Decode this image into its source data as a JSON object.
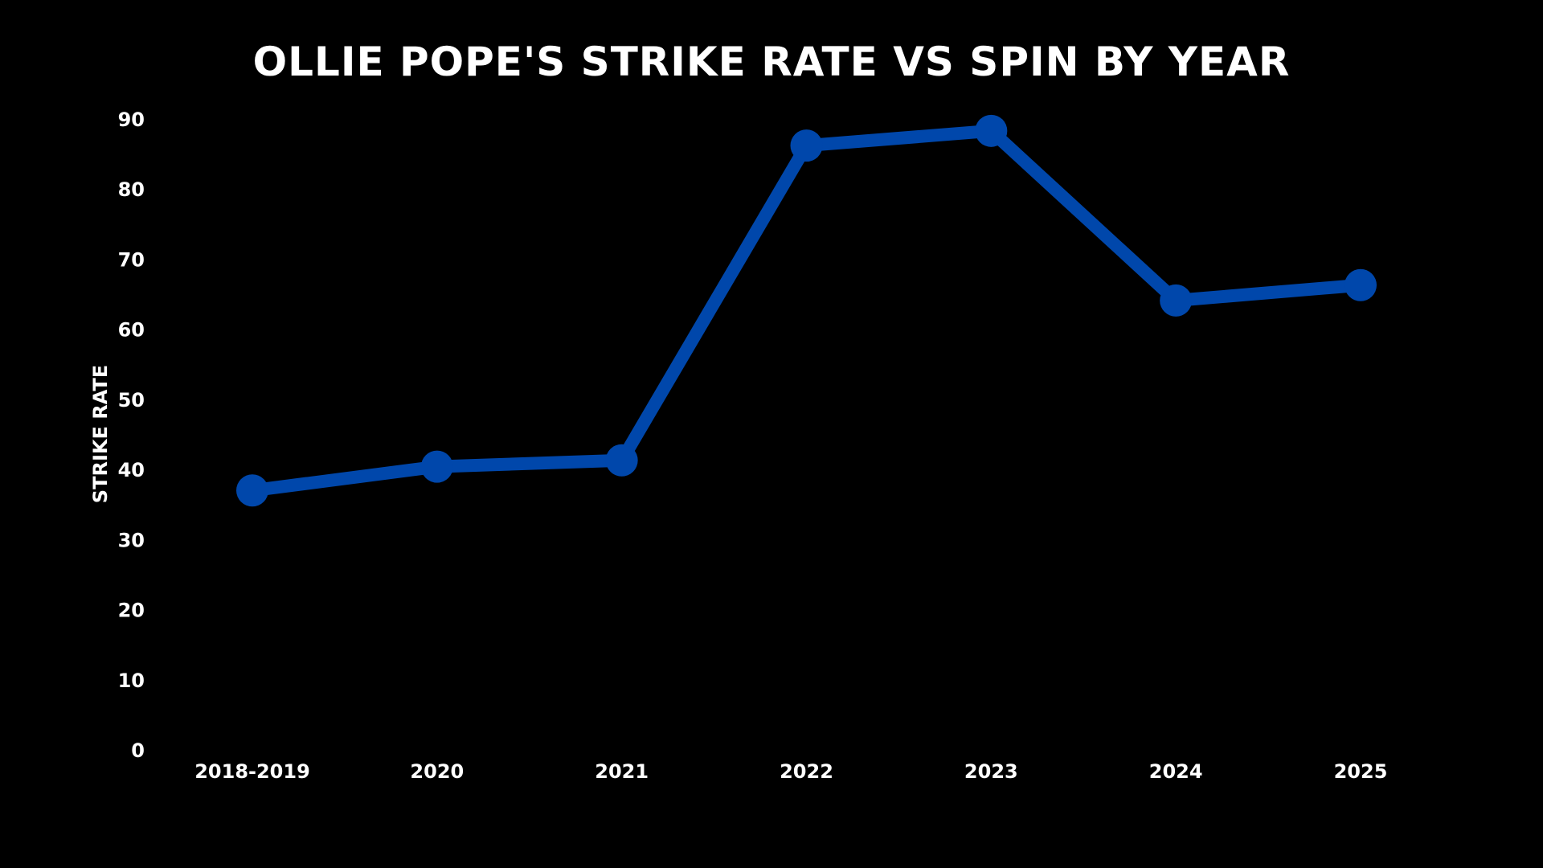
{
  "chart_data": {
    "type": "line",
    "title": "OLLIE POPE'S STRIKE RATE VS SPIN BY YEAR",
    "xlabel": "",
    "ylabel": "STRIKE RATE",
    "categories": [
      "2018-2019",
      "2020",
      "2021",
      "2022",
      "2023",
      "2024",
      "2025"
    ],
    "series": [
      {
        "values": [
          37,
          40.4,
          41.3,
          86.2,
          88.3,
          64.1,
          66.3
        ],
        "color": "#0047AB"
      }
    ],
    "ylim": [
      0,
      90
    ],
    "yticks": [
      0,
      10,
      20,
      30,
      40,
      50,
      60,
      70,
      80,
      90
    ],
    "grid": false,
    "legend": "none",
    "background": "#000000",
    "text_color": "#ffffff"
  }
}
